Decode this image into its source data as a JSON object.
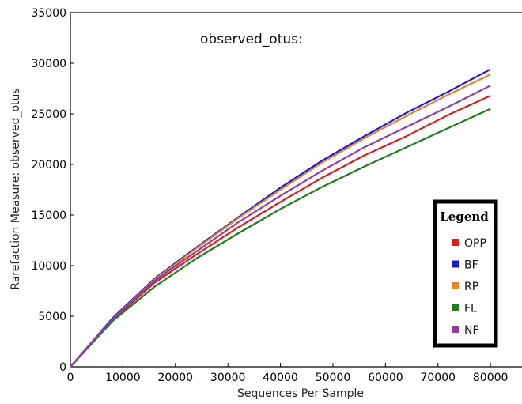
{
  "chart_data": {
    "type": "line",
    "title": "observed_otus:",
    "xlabel": "Sequences Per Sample",
    "ylabel": "Rarefaction Measure: observed_otus",
    "xlim": [
      0,
      86000
    ],
    "ylim": [
      0,
      35000
    ],
    "x_ticks": [
      "0",
      "10000",
      "20000",
      "30000",
      "40000",
      "50000",
      "60000",
      "70000",
      "80000"
    ],
    "y_ticks": [
      "0",
      "5000",
      "10000",
      "15000",
      "20000",
      "25000",
      "30000",
      "35000"
    ],
    "grid": false,
    "legend": {
      "title": "Legend",
      "position": "right"
    },
    "x": [
      0,
      8000,
      16000,
      24000,
      32000,
      40000,
      48000,
      56000,
      64000,
      72000,
      80000
    ],
    "series": [
      {
        "name": "OPP",
        "color": "#d62020",
        "values": [
          0,
          4600,
          8300,
          11100,
          13800,
          16300,
          18700,
          20900,
          22800,
          24900,
          26800
        ]
      },
      {
        "name": "BF",
        "color": "#1a1ad0",
        "values": [
          0,
          4800,
          8700,
          11800,
          14800,
          17700,
          20400,
          22800,
          25100,
          27200,
          29400
        ]
      },
      {
        "name": "RP",
        "color": "#e8832a",
        "values": [
          0,
          4700,
          8600,
          11700,
          14700,
          17500,
          20200,
          22600,
          24800,
          26900,
          28900
        ]
      },
      {
        "name": "FL",
        "color": "#1e7d1e",
        "values": [
          0,
          4500,
          7900,
          10700,
          13200,
          15600,
          17800,
          19800,
          21700,
          23600,
          25500
        ]
      },
      {
        "name": "NF",
        "color": "#8e3fa0",
        "values": [
          0,
          4700,
          8500,
          11400,
          14300,
          16900,
          19400,
          21700,
          23700,
          25700,
          27800
        ]
      }
    ]
  }
}
